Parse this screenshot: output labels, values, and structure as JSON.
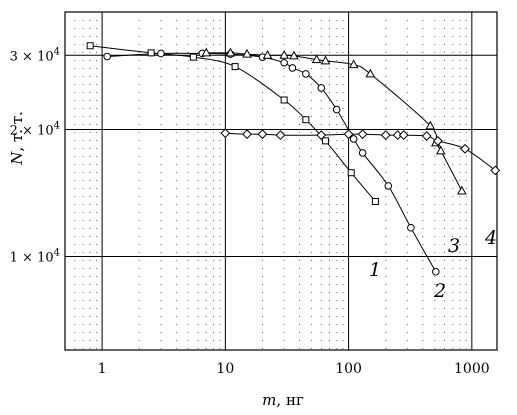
{
  "chart_data": {
    "type": "scatter",
    "title": "",
    "xlabel": {
      "var": "m",
      "unit": ", нг"
    },
    "ylabel": {
      "var": "N",
      "unit": ", т. т."
    },
    "xscale": "log",
    "yscale": "log",
    "xlim": [
      0.5,
      1600
    ],
    "ylim": [
      6000,
      38000
    ],
    "grid": true,
    "xticks": [
      {
        "value": 1,
        "label": "1"
      },
      {
        "value": 10,
        "label": "10"
      },
      {
        "value": 100,
        "label": "100"
      },
      {
        "value": 1000,
        "label": "1000"
      }
    ],
    "yticks": [
      {
        "value": 10000,
        "mant": "1",
        "exp": "4"
      },
      {
        "value": 20000,
        "mant": "2",
        "exp": "4"
      },
      {
        "value": 30000,
        "mant": "3",
        "exp": "4"
      }
    ],
    "series": [
      {
        "name": "1",
        "marker": "square",
        "x": [
          0.8,
          2.5,
          5.5,
          12,
          30,
          45,
          65,
          105,
          165
        ],
        "y": [
          31600,
          30400,
          29700,
          28200,
          23500,
          21100,
          18800,
          15800,
          13500
        ]
      },
      {
        "name": "2",
        "marker": "circle",
        "x": [
          1.1,
          3,
          6.5,
          11,
          20,
          30,
          35,
          45,
          60,
          80,
          110,
          130,
          210,
          320,
          510
        ],
        "y": [
          29800,
          30300,
          30300,
          30200,
          29700,
          28800,
          28000,
          27100,
          25100,
          22300,
          19000,
          17600,
          14700,
          11700,
          9200
        ]
      },
      {
        "name": "3",
        "marker": "triangle",
        "x": [
          7,
          11,
          15,
          22,
          30,
          36,
          55,
          65,
          110,
          150,
          460,
          510,
          560,
          830
        ],
        "y": [
          30400,
          30400,
          30200,
          30000,
          30000,
          29900,
          29300,
          29100,
          28500,
          27100,
          20400,
          18600,
          17800,
          14300
        ]
      },
      {
        "name": "4",
        "marker": "diamond",
        "x": [
          10,
          15,
          20,
          28,
          60,
          100,
          130,
          200,
          250,
          280,
          430,
          530,
          880,
          1550
        ],
        "y": [
          19600,
          19500,
          19500,
          19400,
          19400,
          19500,
          19500,
          19400,
          19400,
          19400,
          19300,
          18800,
          18000,
          16000
        ]
      }
    ]
  }
}
